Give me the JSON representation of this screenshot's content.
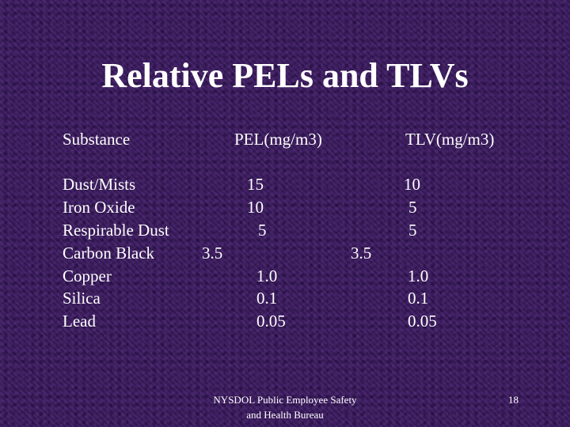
{
  "title": "Relative PELs and TLVs",
  "table": {
    "headers": [
      "Substance",
      "PEL(mg/m3)",
      "TLV(mg/m3)"
    ],
    "rows": [
      {
        "substance": "Dust/Mists",
        "pel": "15",
        "tlv": "10"
      },
      {
        "substance": "Iron Oxide",
        "pel": "10",
        "tlv": "5"
      },
      {
        "substance": "Respirable Dust",
        "pel": "5",
        "tlv": "5"
      },
      {
        "substance": "Carbon Black",
        "pel": "3.5",
        "tlv": "3.5"
      },
      {
        "substance": "Copper",
        "pel": "1.0",
        "tlv": "1.0"
      },
      {
        "substance": "Silica",
        "pel": "0.1",
        "tlv": "0.1"
      },
      {
        "substance": "Lead",
        "pel": "0.05",
        "tlv": "0.05"
      }
    ]
  },
  "footer": {
    "line1": "NYSDOL Public Employee Safety",
    "line2": "and Health Bureau",
    "page_number": "18"
  }
}
